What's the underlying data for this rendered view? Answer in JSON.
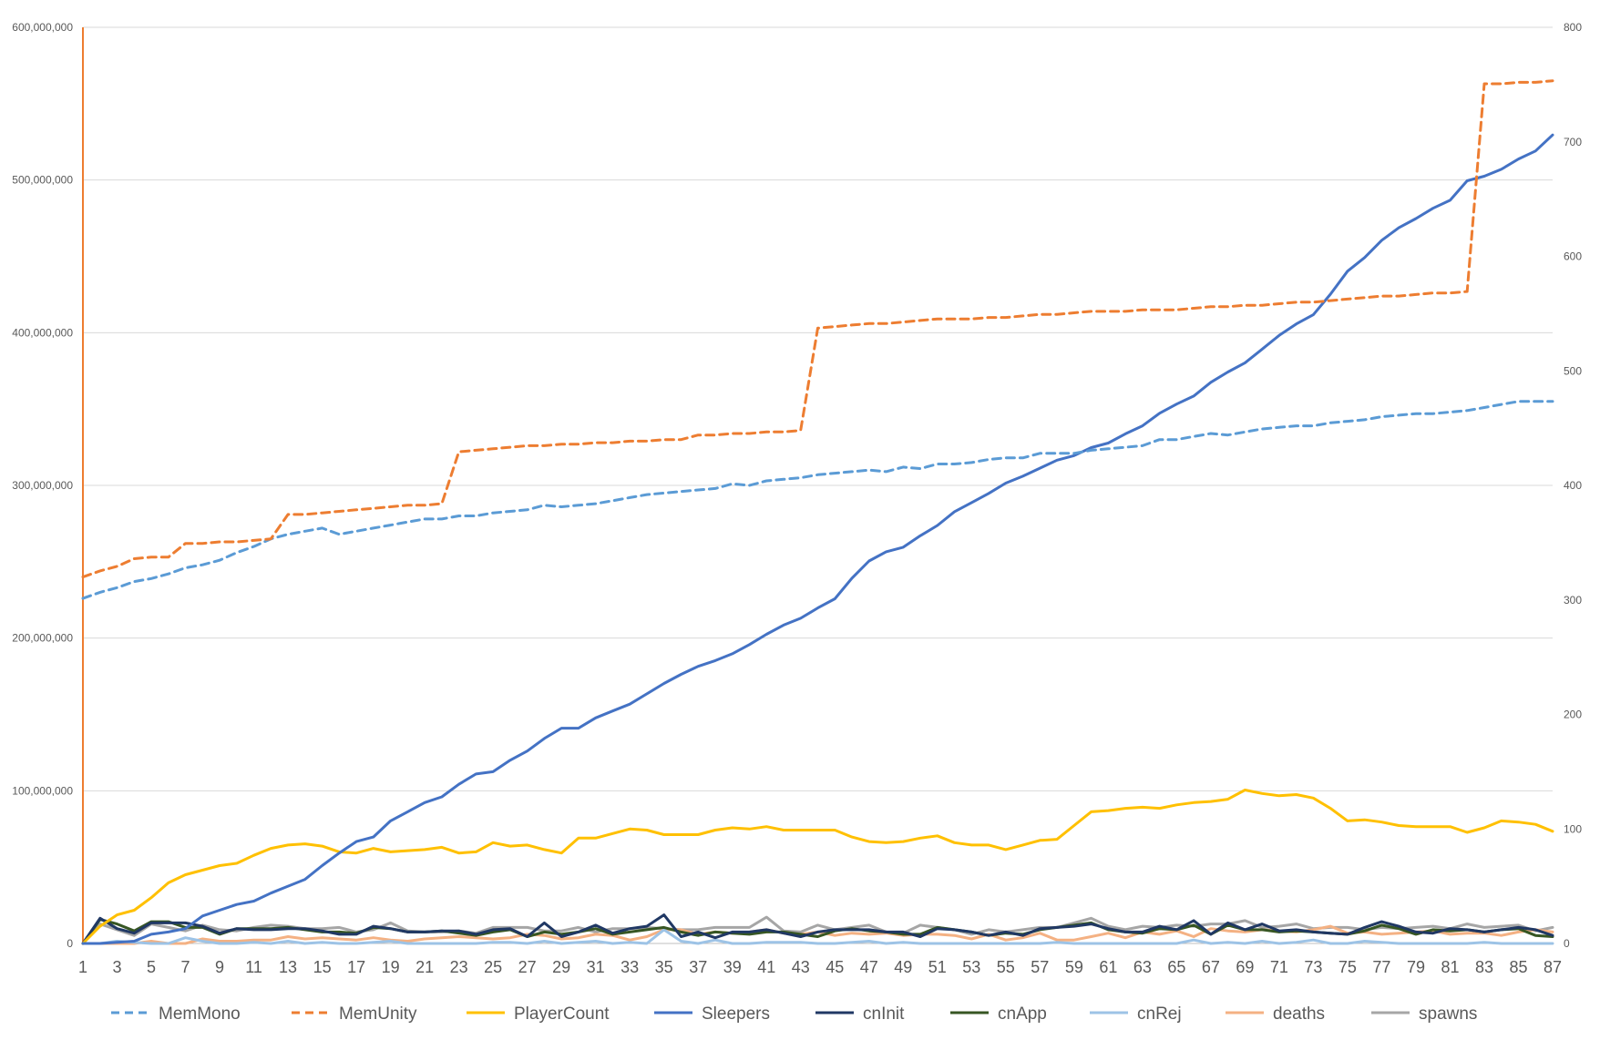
{
  "chart_data": {
    "type": "line",
    "title": "",
    "xlabel": "",
    "ylabel": "",
    "x": [
      1,
      2,
      3,
      4,
      5,
      6,
      7,
      8,
      9,
      10,
      11,
      12,
      13,
      14,
      15,
      16,
      17,
      18,
      19,
      20,
      21,
      22,
      23,
      24,
      25,
      26,
      27,
      28,
      29,
      30,
      31,
      32,
      33,
      34,
      35,
      36,
      37,
      38,
      39,
      40,
      41,
      42,
      43,
      44,
      45,
      46,
      47,
      48,
      49,
      50,
      51,
      52,
      53,
      54,
      55,
      56,
      57,
      58,
      59,
      60,
      61,
      62,
      63,
      64,
      65,
      66,
      67,
      68,
      69,
      70,
      71,
      72,
      73,
      74,
      75,
      76,
      77,
      78,
      79,
      80,
      81,
      82,
      83,
      84,
      85,
      86,
      87
    ],
    "x_tick_labels": [
      "1",
      "3",
      "5",
      "7",
      "9",
      "11",
      "13",
      "15",
      "17",
      "19",
      "21",
      "23",
      "25",
      "27",
      "29",
      "31",
      "33",
      "35",
      "37",
      "39",
      "41",
      "43",
      "45",
      "47",
      "49",
      "51",
      "53",
      "55",
      "57",
      "59",
      "61",
      "63",
      "65",
      "67",
      "69",
      "71",
      "73",
      "75",
      "77",
      "79",
      "81",
      "83",
      "85",
      "87"
    ],
    "y_left": {
      "range": [
        0,
        600000000
      ],
      "ticks": [
        "0",
        "100,000,000",
        "200,000,000",
        "300,000,000",
        "400,000,000",
        "500,000,000",
        "600,000,000"
      ]
    },
    "y_right": {
      "range": [
        0,
        800
      ],
      "ticks": [
        "0",
        "100",
        "200",
        "300",
        "400",
        "500",
        "600",
        "700",
        "800"
      ]
    },
    "grid": true,
    "legend_position": "bottom",
    "series": [
      {
        "name": "MemMono",
        "axis": "left",
        "dash": true,
        "color": "#5B9BD5",
        "values": [
          226000000,
          230000000,
          233000000,
          237000000,
          239000000,
          242000000,
          246000000,
          248000000,
          251000000,
          256000000,
          260000000,
          265000000,
          268000000,
          270000000,
          272000000,
          268000000,
          270000000,
          272000000,
          274000000,
          276000000,
          278000000,
          278000000,
          280000000,
          280000000,
          282000000,
          283000000,
          284000000,
          287000000,
          286000000,
          287000000,
          288000000,
          290000000,
          292000000,
          294000000,
          295000000,
          296000000,
          297000000,
          298000000,
          301000000,
          300000000,
          303000000,
          304000000,
          305000000,
          307000000,
          308000000,
          309000000,
          310000000,
          309000000,
          312000000,
          311000000,
          314000000,
          314000000,
          315000000,
          317000000,
          318000000,
          318000000,
          321000000,
          321000000,
          321000000,
          323000000,
          324000000,
          325000000,
          326000000,
          330000000,
          330000000,
          332000000,
          334000000,
          333000000,
          335000000,
          337000000,
          338000000,
          339000000,
          339000000,
          341000000,
          342000000,
          343000000,
          345000000,
          346000000,
          347000000,
          347000000,
          348000000,
          349000000,
          351000000,
          353000000,
          355000000,
          355000000,
          355000000
        ]
      },
      {
        "name": "MemUnity",
        "axis": "left",
        "dash": true,
        "color": "#ED7D31",
        "values": [
          240000000,
          244000000,
          247000000,
          252000000,
          253000000,
          253000000,
          262000000,
          262000000,
          263000000,
          263000000,
          264000000,
          265000000,
          281000000,
          281000000,
          282000000,
          283000000,
          284000000,
          285000000,
          286000000,
          287000000,
          287000000,
          288000000,
          322000000,
          323000000,
          324000000,
          325000000,
          326000000,
          326000000,
          327000000,
          327000000,
          328000000,
          328000000,
          329000000,
          329000000,
          330000000,
          330000000,
          333000000,
          333000000,
          334000000,
          334000000,
          335000000,
          335000000,
          336000000,
          403000000,
          404000000,
          405000000,
          406000000,
          406000000,
          407000000,
          408000000,
          409000000,
          409000000,
          409000000,
          410000000,
          410000000,
          411000000,
          412000000,
          412000000,
          413000000,
          414000000,
          414000000,
          414000000,
          415000000,
          415000000,
          415000000,
          416000000,
          417000000,
          417000000,
          418000000,
          418000000,
          419000000,
          420000000,
          420000000,
          421000000,
          422000000,
          423000000,
          424000000,
          424000000,
          425000000,
          426000000,
          426000000,
          427000000,
          563000000,
          563000000,
          564000000,
          564000000,
          565000000
        ]
      },
      {
        "name": "PlayerCount",
        "axis": "right",
        "dash": false,
        "color": "#FFC000",
        "values": [
          0,
          15,
          25,
          29,
          40,
          53,
          60,
          64,
          68,
          70,
          77,
          83,
          86,
          87,
          85,
          80,
          79,
          83,
          80,
          81,
          82,
          84,
          79,
          80,
          88,
          85,
          86,
          82,
          79,
          92,
          92,
          96,
          100,
          99,
          95,
          95,
          95,
          99,
          101,
          100,
          102,
          99,
          99,
          99,
          99,
          93,
          89,
          88,
          89,
          92,
          94,
          88,
          86,
          86,
          82,
          86,
          90,
          91,
          103,
          115,
          116,
          118,
          119,
          118,
          121,
          123,
          124,
          126,
          134,
          131,
          129,
          130,
          127,
          118,
          107,
          108,
          106,
          103,
          102,
          102,
          102,
          97,
          101,
          107,
          106,
          104,
          98
        ]
      },
      {
        "name": "Sleepers",
        "axis": "right",
        "dash": false,
        "color": "#4472C4",
        "values": [
          0,
          0,
          1,
          2,
          8,
          10,
          13,
          24,
          29,
          34,
          37,
          44,
          50,
          56,
          68,
          79,
          89,
          93,
          107,
          115,
          123,
          128,
          139,
          148,
          150,
          160,
          168,
          179,
          188,
          188,
          197,
          203,
          209,
          218,
          227,
          235,
          242,
          247,
          253,
          261,
          270,
          278,
          284,
          293,
          301,
          319,
          334,
          342,
          346,
          356,
          365,
          377,
          385,
          393,
          402,
          408,
          415,
          422,
          426,
          433,
          437,
          445,
          452,
          463,
          471,
          478,
          490,
          499,
          507,
          519,
          531,
          541,
          549,
          567,
          587,
          599,
          614,
          625,
          633,
          642,
          649,
          666,
          670,
          676,
          685,
          692,
          706
        ]
      },
      {
        "name": "cnInit",
        "axis": "right",
        "dash": false,
        "color": "#203864",
        "values": [
          0,
          22,
          13,
          9,
          18,
          18,
          18,
          15,
          9,
          13,
          12,
          12,
          13,
          13,
          11,
          8,
          8,
          15,
          13,
          10,
          10,
          11,
          11,
          8,
          12,
          13,
          6,
          18,
          6,
          10,
          16,
          9,
          13,
          15,
          25,
          6,
          10,
          5,
          10,
          10,
          12,
          9,
          6,
          10,
          12,
          12,
          12,
          10,
          10,
          6,
          13,
          12,
          10,
          7,
          10,
          7,
          13,
          14,
          15,
          17,
          13,
          10,
          10,
          15,
          12,
          20,
          8,
          18,
          12,
          17,
          11,
          12,
          10,
          9,
          8,
          14,
          19,
          15,
          10,
          9,
          13,
          12,
          10,
          12,
          14,
          12,
          7
        ]
      },
      {
        "name": "cnApp",
        "axis": "right",
        "dash": false,
        "color": "#375623",
        "values": [
          0,
          21,
          17,
          11,
          19,
          19,
          14,
          14,
          8,
          13,
          13,
          13,
          14,
          12,
          10,
          10,
          9,
          14,
          13,
          10,
          10,
          11,
          9,
          7,
          10,
          12,
          6,
          10,
          8,
          10,
          13,
          8,
          10,
          12,
          14,
          10,
          7,
          10,
          9,
          8,
          10,
          10,
          8,
          6,
          11,
          13,
          11,
          10,
          8,
          8,
          14,
          12,
          10,
          7,
          9,
          8,
          12,
          14,
          16,
          18,
          12,
          10,
          9,
          13,
          12,
          16,
          8,
          16,
          12,
          12,
          10,
          11,
          10,
          9,
          8,
          11,
          16,
          13,
          8,
          12,
          11,
          12,
          10,
          12,
          13,
          7,
          6
        ]
      },
      {
        "name": "cnRej",
        "axis": "right",
        "dash": false,
        "color": "#9DC3E6",
        "values": [
          0,
          0,
          2,
          1,
          0,
          0,
          5,
          2,
          0,
          0,
          1,
          0,
          2,
          0,
          1,
          0,
          0,
          1,
          2,
          0,
          0,
          0,
          0,
          0,
          1,
          1,
          0,
          2,
          0,
          1,
          2,
          0,
          1,
          0,
          12,
          2,
          0,
          3,
          0,
          0,
          1,
          1,
          1,
          0,
          0,
          1,
          2,
          0,
          1,
          0,
          0,
          0,
          0,
          0,
          0,
          0,
          0,
          1,
          0,
          0,
          0,
          0,
          0,
          0,
          0,
          3,
          0,
          1,
          0,
          2,
          0,
          1,
          3,
          0,
          0,
          2,
          1,
          0,
          0,
          0,
          0,
          0,
          1,
          0,
          0,
          0,
          0
        ]
      },
      {
        "name": "deaths",
        "axis": "right",
        "dash": false,
        "color": "#F4B183",
        "values": [
          0,
          0,
          0,
          0,
          2,
          0,
          0,
          4,
          2,
          2,
          3,
          3,
          6,
          4,
          5,
          4,
          3,
          5,
          3,
          2,
          4,
          5,
          6,
          5,
          4,
          5,
          8,
          7,
          4,
          5,
          8,
          7,
          3,
          6,
          12,
          12,
          8,
          10,
          9,
          10,
          12,
          9,
          8,
          10,
          7,
          9,
          8,
          9,
          7,
          8,
          8,
          7,
          4,
          8,
          3,
          5,
          9,
          3,
          3,
          6,
          9,
          5,
          10,
          8,
          11,
          6,
          13,
          11,
          10,
          12,
          11,
          10,
          12,
          15,
          9,
          10,
          8,
          9,
          10,
          11,
          8,
          9,
          9,
          7,
          10,
          12,
          10
        ]
      },
      {
        "name": "spawns",
        "axis": "right",
        "dash": false,
        "color": "#A6A6A6",
        "values": [
          0,
          17,
          12,
          7,
          17,
          14,
          11,
          16,
          12,
          11,
          14,
          16,
          15,
          13,
          13,
          14,
          10,
          12,
          18,
          11,
          10,
          10,
          11,
          9,
          14,
          14,
          14,
          11,
          11,
          14,
          10,
          13,
          13,
          14,
          13,
          12,
          12,
          14,
          14,
          14,
          23,
          11,
          10,
          16,
          12,
          14,
          16,
          10,
          9,
          16,
          14,
          12,
          8,
          12,
          10,
          12,
          14,
          14,
          18,
          22,
          15,
          12,
          15,
          14,
          16,
          15,
          17,
          17,
          20,
          14,
          15,
          17,
          13,
          14,
          14,
          12,
          14,
          13,
          14,
          15,
          13,
          17,
          14,
          15,
          16,
          11,
          14
        ]
      }
    ]
  }
}
